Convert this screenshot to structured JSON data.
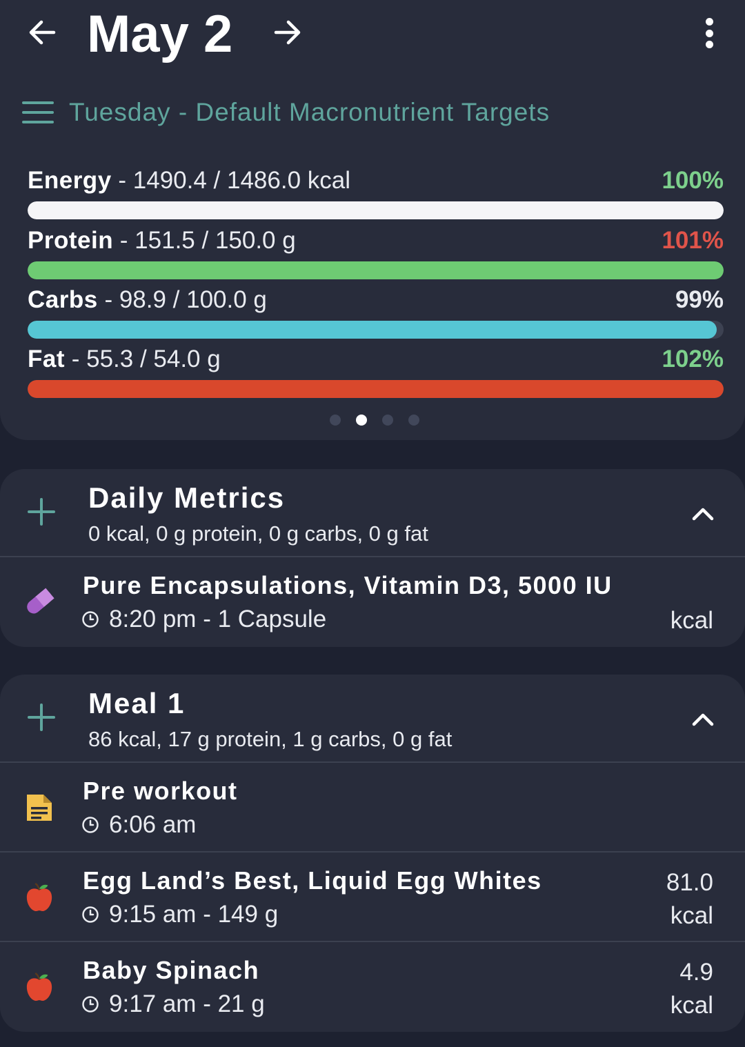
{
  "header": {
    "date": "May 2",
    "target_label": "Tuesday - Default Macronutrient Targets"
  },
  "macros": [
    {
      "name": "Energy",
      "value_text": " - 1490.4 / 1486.0 kcal",
      "pct": "100%",
      "fill_fraction": 1.0,
      "bar_color": "#f5f5f7",
      "pct_color": "#7dd08c"
    },
    {
      "name": "Protein",
      "value_text": " - 151.5 / 150.0 g",
      "pct": "101%",
      "fill_fraction": 1.0,
      "bar_color": "#6ecb73",
      "pct_color": "#e0544a"
    },
    {
      "name": "Carbs",
      "value_text": " - 98.9 / 100.0 g",
      "pct": "99%",
      "fill_fraction": 0.99,
      "bar_color": "#56c6d4",
      "pct_color": "#e9ebf0"
    },
    {
      "name": "Fat",
      "value_text": " - 55.3 / 54.0 g",
      "pct": "102%",
      "fill_fraction": 1.0,
      "bar_color": "#d9482c",
      "pct_color": "#7dd08c"
    }
  ],
  "pager": {
    "count": 4,
    "active": 1
  },
  "sections": [
    {
      "title": "Daily Metrics",
      "summary": "0 kcal, 0 g protein, 0 g carbs, 0 g fat",
      "entries": [
        {
          "icon": "pill-icon",
          "title": "Pure Encapsulations, Vitamin D3, 5000 IU",
          "meta": "8:20 pm - 1 Capsule",
          "kcal_value": "",
          "kcal_unit": "kcal"
        }
      ]
    },
    {
      "title": "Meal 1",
      "summary": "86 kcal, 17 g protein, 1 g carbs, 0 g fat",
      "entries": [
        {
          "icon": "note-icon",
          "title": "Pre workout",
          "meta": "6:06 am",
          "kcal_value": "",
          "kcal_unit": ""
        },
        {
          "icon": "apple-icon",
          "title": "Egg Land’s Best, Liquid Egg Whites",
          "meta": "9:15 am - 149 g",
          "kcal_value": "81.0",
          "kcal_unit": "kcal"
        },
        {
          "icon": "apple-icon",
          "title": "Baby Spinach",
          "meta": "9:17 am - 21 g",
          "kcal_value": "4.9",
          "kcal_unit": "kcal"
        }
      ]
    }
  ],
  "colors": {
    "accent_teal": "#5fa59d",
    "card_bg": "#282c3b",
    "page_bg": "#1d2130",
    "pill_purple": "#a65fc9",
    "note_yellow": "#f2c14e",
    "apple_red": "#e2472f"
  }
}
